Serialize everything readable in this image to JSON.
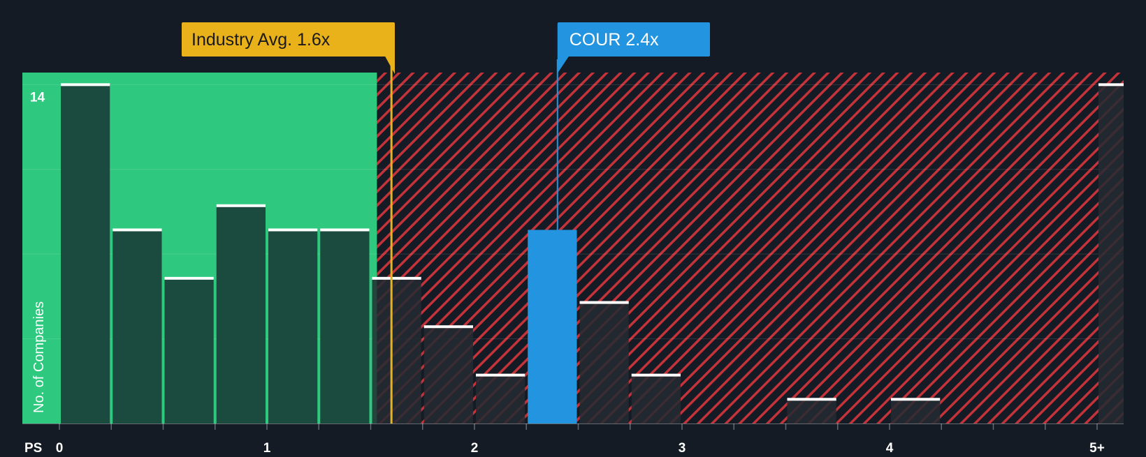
{
  "chart_data": {
    "type": "bar",
    "xlabel": "PS",
    "ylabel": "No. of Companies",
    "bin_width": 0.25,
    "x_ticks": [
      {
        "value": 0,
        "label": "0"
      },
      {
        "value": 1,
        "label": "1"
      },
      {
        "value": 2,
        "label": "2"
      },
      {
        "value": 3,
        "label": "3"
      },
      {
        "value": 4,
        "label": "4"
      },
      {
        "value": 5,
        "label": "5+"
      }
    ],
    "y_tick_label": {
      "value": 14,
      "label": "14"
    },
    "ylim": [
      0,
      14.5
    ],
    "bins": [
      {
        "start": 0.0,
        "count": 14
      },
      {
        "start": 0.25,
        "count": 8
      },
      {
        "start": 0.5,
        "count": 6
      },
      {
        "start": 0.75,
        "count": 9
      },
      {
        "start": 1.0,
        "count": 8
      },
      {
        "start": 1.25,
        "count": 8
      },
      {
        "start": 1.5,
        "count": 6
      },
      {
        "start": 1.75,
        "count": 4
      },
      {
        "start": 2.0,
        "count": 2
      },
      {
        "start": 2.25,
        "count": 8,
        "highlight": true
      },
      {
        "start": 2.5,
        "count": 5
      },
      {
        "start": 2.75,
        "count": 2
      },
      {
        "start": 3.5,
        "count": 1
      },
      {
        "start": 4.0,
        "count": 1
      },
      {
        "start": 5.0,
        "count": 14
      }
    ],
    "industry_avg": {
      "value": 1.6,
      "label": "Industry Avg. 1.6x"
    },
    "company": {
      "ticker": "COUR",
      "value": 2.4,
      "label": "COUR 2.4x"
    },
    "fair_region_end": 1.53,
    "colors": {
      "background": "#151b24",
      "fair_region": "#2ec97f",
      "bar_in_fair": "#1b4a3e",
      "bar_over": "#232a31",
      "overvalued_stripe": "#c4333a",
      "highlight_bar": "#2394e0",
      "industry_label_bg": "#eab21a",
      "company_label_bg": "#2394e0",
      "bar_cap": "#ffffff",
      "axis_text": "#ffffff"
    }
  }
}
